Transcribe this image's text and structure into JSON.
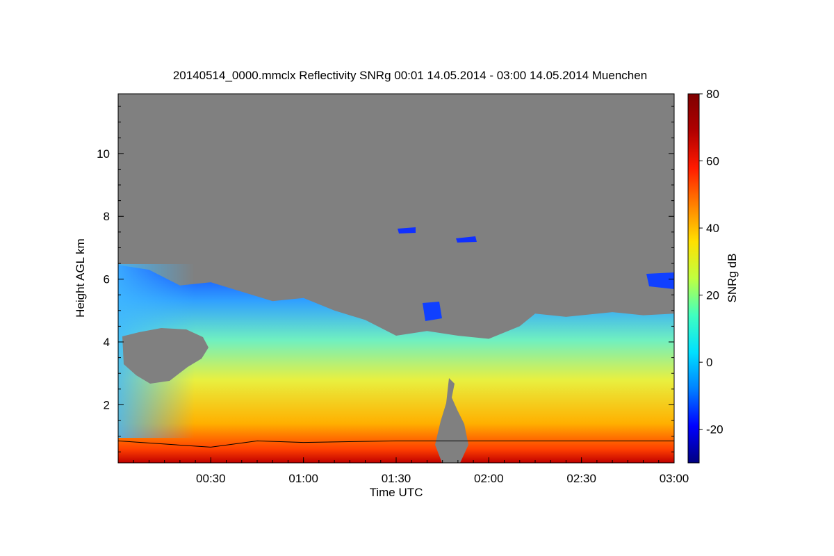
{
  "chart_data": {
    "type": "heatmap",
    "title": "20140514_0000.mmclx Reflectivity SNRg   00:01 14.05.2014 - 03:00 14.05.2014 Muenchen",
    "xlabel": "Time UTC",
    "ylabel": "Height AGL km",
    "colorbar_label": "SNRg dB",
    "x_range_min": [
      0,
      180
    ],
    "ylim": [
      0.15,
      11.9
    ],
    "x_ticks": [
      {
        "minutes": 30,
        "label": "00:30"
      },
      {
        "minutes": 60,
        "label": "01:00"
      },
      {
        "minutes": 90,
        "label": "01:30"
      },
      {
        "minutes": 120,
        "label": "02:00"
      },
      {
        "minutes": 150,
        "label": "02:30"
      },
      {
        "minutes": 180,
        "label": "03:00"
      }
    ],
    "y_ticks": [
      2,
      4,
      6,
      8,
      10
    ],
    "colorbar_range": [
      -30,
      80
    ],
    "colorbar_ticks": [
      -20,
      0,
      20,
      40,
      60,
      80
    ],
    "colormap": [
      "#00007f",
      "#0000ff",
      "#0080ff",
      "#00e0ff",
      "#40ffc0",
      "#c0ff40",
      "#ffe000",
      "#ff8000",
      "#ff1a00",
      "#b00000",
      "#7f0000"
    ],
    "no_signal_color": "#808080",
    "cloud_top_km": [
      [
        0,
        6.45
      ],
      [
        10,
        6.3
      ],
      [
        20,
        5.8
      ],
      [
        30,
        5.9
      ],
      [
        40,
        5.6
      ],
      [
        50,
        5.3
      ],
      [
        60,
        5.4
      ],
      [
        70,
        5.0
      ],
      [
        80,
        4.7
      ],
      [
        90,
        4.2
      ],
      [
        100,
        4.35
      ],
      [
        110,
        4.2
      ],
      [
        120,
        4.1
      ],
      [
        130,
        4.5
      ],
      [
        135,
        4.9
      ],
      [
        145,
        4.8
      ],
      [
        160,
        4.95
      ],
      [
        170,
        4.85
      ],
      [
        180,
        4.9
      ]
    ],
    "cloud_base_km": [
      [
        0,
        0.85
      ],
      [
        15,
        0.75
      ],
      [
        30,
        0.65
      ],
      [
        45,
        0.85
      ],
      [
        60,
        0.8
      ],
      [
        90,
        0.85
      ],
      [
        120,
        0.85
      ],
      [
        150,
        0.85
      ],
      [
        180,
        0.85
      ]
    ]
  }
}
